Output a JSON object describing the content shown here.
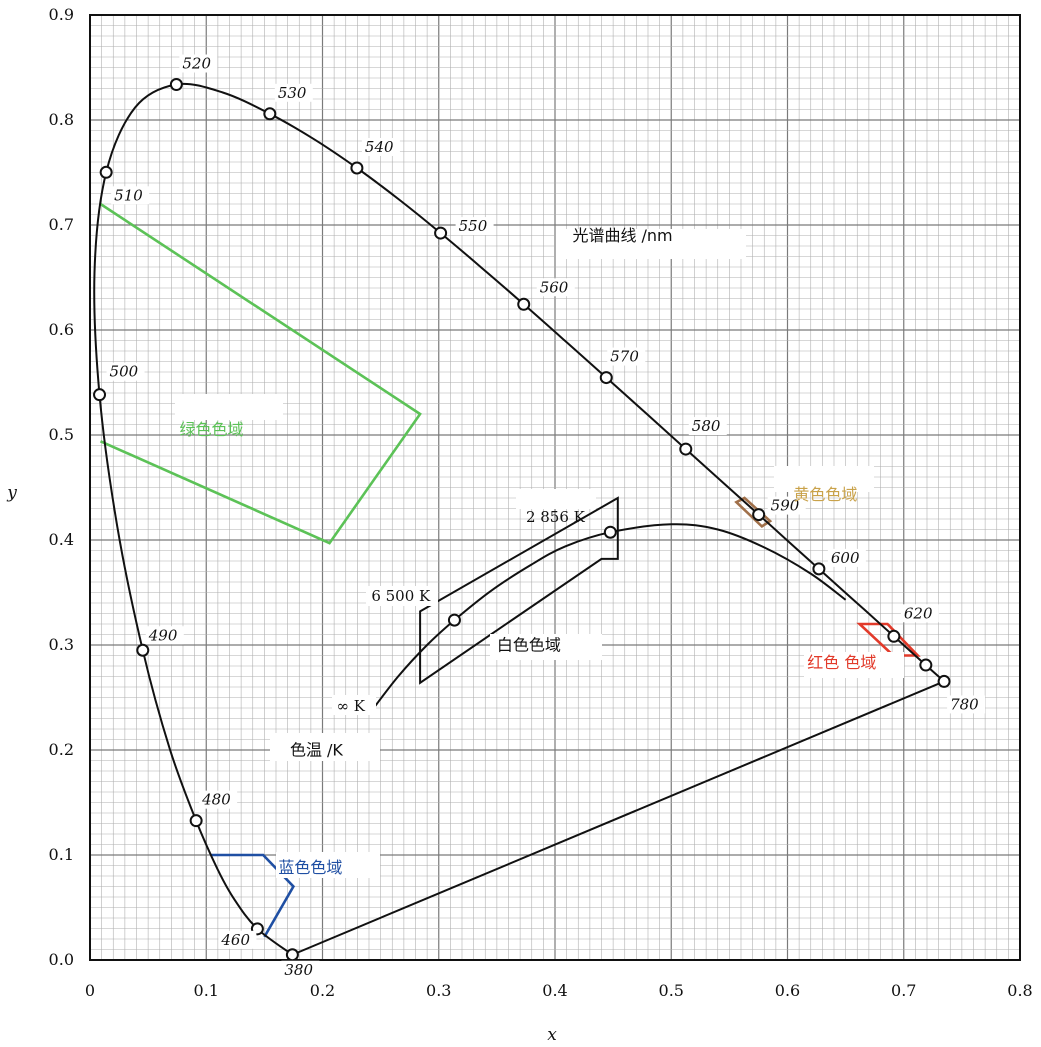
{
  "chart_data": {
    "type": "line",
    "title": "",
    "xlabel": "x",
    "ylabel": "y",
    "xlim": [
      0,
      0.8
    ],
    "ylim": [
      0,
      0.9
    ],
    "x_ticks": [
      "0",
      "0.1",
      "0.2",
      "0.3",
      "0.4",
      "0.5",
      "0.6",
      "0.7",
      "0.8"
    ],
    "y_ticks": [
      "0.0",
      "0.1",
      "0.2",
      "0.3",
      "0.4",
      "0.5",
      "0.6",
      "0.7",
      "0.8",
      "0.9"
    ],
    "grid": true,
    "colors": {
      "grid": "#b0b0b0",
      "grid_major": "#7a7a7a",
      "locus": "#111111",
      "green": "#5cc257",
      "blue": "#1f4fa3",
      "red": "#e23a2a",
      "yellow": "#a0704a",
      "yellow_text": "#c9a24a",
      "white_region": "#111111"
    },
    "spectral_locus": [
      {
        "x": 0.1741,
        "y": 0.005,
        "label": "380"
      },
      {
        "x": 0.144,
        "y": 0.0297,
        "label": "460"
      },
      {
        "x": 0.1241,
        "y": 0.0578
      },
      {
        "x": 0.1096,
        "y": 0.0868
      },
      {
        "x": 0.0913,
        "y": 0.1327,
        "label": "480"
      },
      {
        "x": 0.0687,
        "y": 0.2007
      },
      {
        "x": 0.0454,
        "y": 0.295,
        "label": "490"
      },
      {
        "x": 0.0235,
        "y": 0.4127
      },
      {
        "x": 0.0082,
        "y": 0.5384,
        "label": "500"
      },
      {
        "x": 0.0039,
        "y": 0.6548
      },
      {
        "x": 0.0139,
        "y": 0.7502,
        "label": "510"
      },
      {
        "x": 0.0389,
        "y": 0.812
      },
      {
        "x": 0.0743,
        "y": 0.8338,
        "label": "520"
      },
      {
        "x": 0.1142,
        "y": 0.8262
      },
      {
        "x": 0.1547,
        "y": 0.8059,
        "label": "530"
      },
      {
        "x": 0.1929,
        "y": 0.7816
      },
      {
        "x": 0.2296,
        "y": 0.7543,
        "label": "540"
      },
      {
        "x": 0.2658,
        "y": 0.7243
      },
      {
        "x": 0.3016,
        "y": 0.6923,
        "label": "550"
      },
      {
        "x": 0.3373,
        "y": 0.6589
      },
      {
        "x": 0.3731,
        "y": 0.6245,
        "label": "560"
      },
      {
        "x": 0.4087,
        "y": 0.5896
      },
      {
        "x": 0.4441,
        "y": 0.5547,
        "label": "570"
      },
      {
        "x": 0.4788,
        "y": 0.5202
      },
      {
        "x": 0.5125,
        "y": 0.4866,
        "label": "580"
      },
      {
        "x": 0.5448,
        "y": 0.4544
      },
      {
        "x": 0.5752,
        "y": 0.4242,
        "label": "590"
      },
      {
        "x": 0.6029,
        "y": 0.3965
      },
      {
        "x": 0.627,
        "y": 0.3725,
        "label": "600"
      },
      {
        "x": 0.6482,
        "y": 0.3514
      },
      {
        "x": 0.6658,
        "y": 0.334
      },
      {
        "x": 0.6915,
        "y": 0.3083,
        "label": "620"
      },
      {
        "x": 0.719,
        "y": 0.2809
      },
      {
        "x": 0.7347,
        "y": 0.2653,
        "label": "780"
      }
    ],
    "locus_markers": [
      {
        "x": 0.1741,
        "y": 0.005
      },
      {
        "x": 0.144,
        "y": 0.0297
      },
      {
        "x": 0.0913,
        "y": 0.1327
      },
      {
        "x": 0.0454,
        "y": 0.295
      },
      {
        "x": 0.0082,
        "y": 0.5384
      },
      {
        "x": 0.0139,
        "y": 0.7502
      },
      {
        "x": 0.0743,
        "y": 0.8338
      },
      {
        "x": 0.1547,
        "y": 0.8059
      },
      {
        "x": 0.2296,
        "y": 0.7543
      },
      {
        "x": 0.3016,
        "y": 0.6923
      },
      {
        "x": 0.3731,
        "y": 0.6245
      },
      {
        "x": 0.4441,
        "y": 0.5547
      },
      {
        "x": 0.5125,
        "y": 0.4866
      },
      {
        "x": 0.5752,
        "y": 0.4242
      },
      {
        "x": 0.627,
        "y": 0.3725
      },
      {
        "x": 0.6915,
        "y": 0.3083
      },
      {
        "x": 0.719,
        "y": 0.2809
      },
      {
        "x": 0.7347,
        "y": 0.2653
      }
    ],
    "planckian_locus": [
      {
        "x": 0.24,
        "y": 0.234
      },
      {
        "x": 0.265,
        "y": 0.27
      },
      {
        "x": 0.29,
        "y": 0.3
      },
      {
        "x": 0.3135,
        "y": 0.3237
      },
      {
        "x": 0.345,
        "y": 0.3516
      },
      {
        "x": 0.38,
        "y": 0.3768
      },
      {
        "x": 0.409,
        "y": 0.394
      },
      {
        "x": 0.4476,
        "y": 0.4074
      },
      {
        "x": 0.5,
        "y": 0.415
      },
      {
        "x": 0.54,
        "y": 0.41
      },
      {
        "x": 0.58,
        "y": 0.393
      },
      {
        "x": 0.62,
        "y": 0.368
      },
      {
        "x": 0.65,
        "y": 0.343
      }
    ],
    "planckian_markers": [
      {
        "x": 0.3135,
        "y": 0.3237
      },
      {
        "x": 0.4476,
        "y": 0.4074
      }
    ],
    "regions": [
      {
        "name": "green",
        "label": "绿色色域",
        "color_key": "green",
        "points": [
          [
            0.009,
            0.72
          ],
          [
            0.284,
            0.52
          ],
          [
            0.206,
            0.397
          ],
          [
            0.009,
            0.494
          ]
        ],
        "closed": false
      },
      {
        "name": "blue",
        "label": "蓝色色域",
        "color_key": "blue",
        "points": [
          [
            0.104,
            0.1
          ],
          [
            0.149,
            0.1
          ],
          [
            0.175,
            0.07
          ],
          [
            0.15,
            0.022
          ]
        ],
        "closed": false
      },
      {
        "name": "red",
        "label": "红色 色域",
        "color_key": "red",
        "points": [
          [
            0.662,
            0.32
          ],
          [
            0.686,
            0.32
          ],
          [
            0.712,
            0.29
          ],
          [
            0.691,
            0.29
          ],
          [
            0.662,
            0.32
          ]
        ],
        "closed": true
      },
      {
        "name": "yellow",
        "label": "黄色色域",
        "color_key": "yellow",
        "points": [
          [
            0.556,
            0.436
          ],
          [
            0.563,
            0.44
          ],
          [
            0.585,
            0.418
          ],
          [
            0.578,
            0.413
          ],
          [
            0.556,
            0.436
          ]
        ],
        "closed": true
      },
      {
        "name": "white",
        "label": "白色色域",
        "color_key": "white_region",
        "points": [
          [
            0.284,
            0.332
          ],
          [
            0.454,
            0.44
          ],
          [
            0.454,
            0.382
          ],
          [
            0.44,
            0.382
          ],
          [
            0.284,
            0.264
          ],
          [
            0.284,
            0.332
          ]
        ],
        "closed": true
      }
    ],
    "annotations": {
      "spectral_curve": "光谱曲线 /nm",
      "color_temp": "色温 /K",
      "k2856": "2 856 K",
      "k6500": "6 500 K",
      "kinf": "∞ K"
    }
  }
}
